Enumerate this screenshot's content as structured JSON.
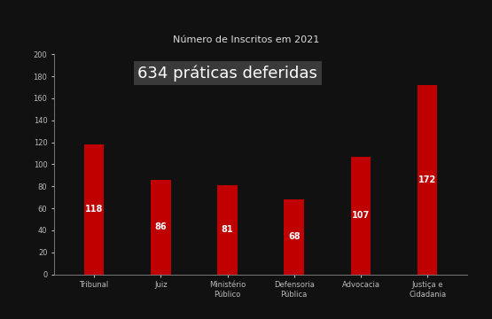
{
  "chart_data": {
    "type": "bar",
    "title": "Número de Inscritos em 2021",
    "annotation": "634 práticas deferidas",
    "categories": [
      "Tribunal",
      "Juiz",
      "Ministério Público",
      "Defensoria Pública",
      "Advocacia",
      "Justiça e Cidadania"
    ],
    "values": [
      118,
      86,
      81,
      68,
      107,
      172
    ],
    "color": "#c00000",
    "ylim": [
      0,
      200
    ],
    "yticks": [
      0,
      20,
      40,
      60,
      80,
      100,
      120,
      140,
      160,
      180,
      200
    ],
    "grid": false,
    "data_labels": true
  }
}
